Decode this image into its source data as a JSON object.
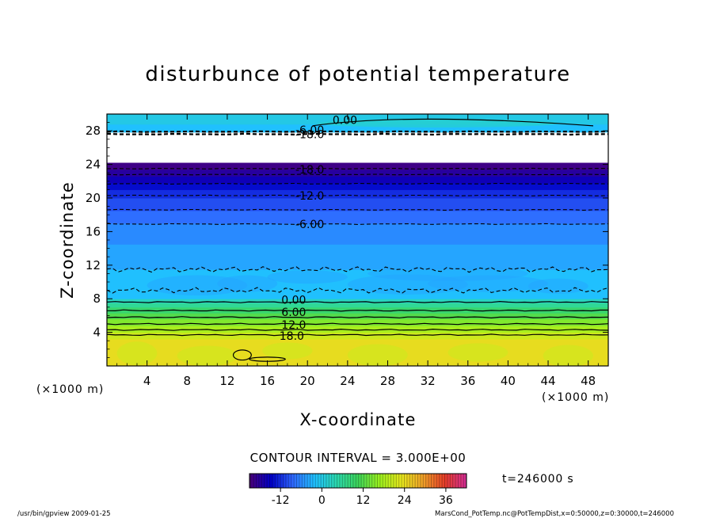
{
  "chart_data": {
    "type": "heatmap",
    "title": "disturbunce of potential temperature",
    "xlabel": "X-coordinate",
    "ylabel": "Z-coordinate",
    "x_unit_left": "(×1000 m)",
    "x_unit_right": "(×1000 m)",
    "xlim": [
      0,
      50
    ],
    "ylim": [
      0,
      30
    ],
    "x_ticks": [
      4,
      8,
      12,
      16,
      20,
      24,
      28,
      32,
      36,
      40,
      44,
      48
    ],
    "y_ticks": [
      4,
      8,
      12,
      16,
      20,
      24,
      28
    ],
    "contour_interval_text": "CONTOUR INTERVAL = 3.000E+00",
    "time_text": "t=246000 s",
    "colorbar": {
      "min": -21,
      "max": 42,
      "ticks": [
        -12,
        0,
        12,
        24,
        36
      ],
      "stops": [
        "#4b0079",
        "#0000c8",
        "#2f68ff",
        "#20c0ff",
        "#2bd9b0",
        "#3cd45a",
        "#9bf01e",
        "#e6e61e",
        "#f0a028",
        "#e63c28",
        "#d22d96"
      ]
    },
    "bands": [
      {
        "z0": 0,
        "z1": 3.2,
        "value": 24
      },
      {
        "z0": 3.2,
        "z1": 4.0,
        "value": 21
      },
      {
        "z0": 4.0,
        "z1": 4.8,
        "value": 18
      },
      {
        "z0": 4.8,
        "z1": 5.6,
        "value": 15
      },
      {
        "z0": 5.6,
        "z1": 6.3,
        "value": 12
      },
      {
        "z0": 6.3,
        "z1": 7.0,
        "value": 9
      },
      {
        "z0": 7.0,
        "z1": 7.5,
        "value": 6
      },
      {
        "z0": 7.5,
        "z1": 8.0,
        "value": 3
      },
      {
        "z0": 8.0,
        "z1": 11.5,
        "value": -2
      },
      {
        "z0": 11.5,
        "z1": 14.5,
        "value": -4
      },
      {
        "z0": 14.5,
        "z1": 17.0,
        "value": -6
      },
      {
        "z0": 17.0,
        "z1": 18.5,
        "value": -8
      },
      {
        "z0": 18.5,
        "z1": 20.0,
        "value": -10
      },
      {
        "z0": 20.0,
        "z1": 21.0,
        "value": -12
      },
      {
        "z0": 21.0,
        "z1": 21.8,
        "value": -14
      },
      {
        "z0": 21.8,
        "z1": 22.6,
        "value": -16
      },
      {
        "z0": 22.6,
        "z1": 23.4,
        "value": -18
      },
      {
        "z0": 23.4,
        "z1": 24.2,
        "value": -20
      },
      {
        "z0": 27.8,
        "z1": 28.8,
        "value": -2
      },
      {
        "z0": 28.8,
        "z1": 30,
        "value": 0
      }
    ],
    "blank_band": [
      24.2,
      27.8
    ],
    "contour_labels": [
      {
        "text": "0.00",
        "x": 22.5,
        "y": 29.2
      },
      {
        "text": "-6.00",
        "x": 18.8,
        "y": 28.0
      },
      {
        "text": "-18.0",
        "x": 18.8,
        "y": 27.5
      },
      {
        "text": "-18.0",
        "x": 18.8,
        "y": 23.3
      },
      {
        "text": "-12.0",
        "x": 18.8,
        "y": 20.2
      },
      {
        "text": "-6.00",
        "x": 18.8,
        "y": 16.8
      },
      {
        "text": "0.00",
        "x": 17.4,
        "y": 7.8
      },
      {
        "text": "6.00",
        "x": 17.4,
        "y": 6.3
      },
      {
        "text": "12.0",
        "x": 17.4,
        "y": 4.8
      },
      {
        "text": "18.0",
        "x": 17.2,
        "y": 3.5
      }
    ],
    "solid_contours_z": [
      7.6,
      6.6,
      5.8,
      5.0,
      4.3,
      3.7
    ],
    "dashed_contours_z": [
      9.0,
      11.5,
      16.9,
      18.6,
      20.3,
      21.7,
      22.8,
      23.5,
      27.6,
      27.9
    ]
  },
  "footer": {
    "left": "/usr/bin/gpview  2009-01-25",
    "right": "MarsCond_PotTemp.nc@PotTempDist,x=0:50000,z=0:30000,t=246000"
  }
}
